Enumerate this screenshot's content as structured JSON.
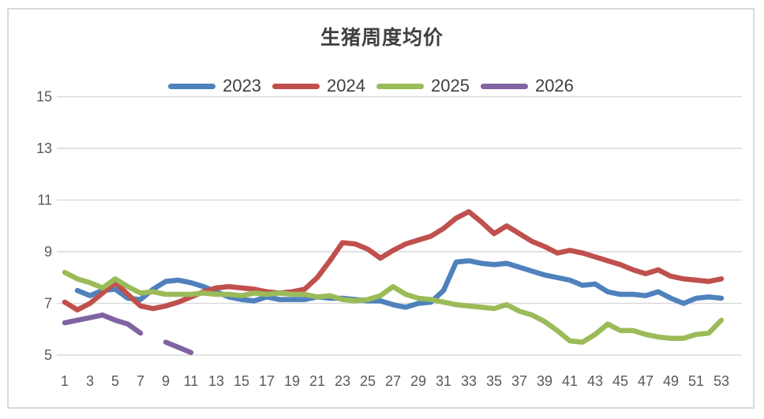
{
  "chart": {
    "title": "生猪周度均价"
  },
  "chart_data": {
    "type": "line",
    "title": "生猪周度均价",
    "xlabel": "",
    "ylabel": "",
    "x_range": [
      1,
      53
    ],
    "ylim": [
      5,
      15
    ],
    "y_ticks": [
      5,
      7,
      9,
      11,
      13,
      15
    ],
    "x_ticks": [
      1,
      3,
      5,
      7,
      9,
      11,
      13,
      15,
      17,
      19,
      21,
      23,
      25,
      27,
      29,
      31,
      33,
      35,
      37,
      39,
      41,
      43,
      45,
      47,
      49,
      51,
      53
    ],
    "grid": "horizontal",
    "legend_position": "top-center",
    "series": [
      {
        "name": "2023",
        "color": "#4F81BD",
        "values": [
          null,
          7.5,
          7.3,
          7.5,
          7.55,
          7.2,
          7.15,
          7.55,
          7.85,
          7.9,
          7.8,
          7.65,
          7.45,
          7.25,
          7.15,
          7.1,
          7.25,
          7.15,
          7.15,
          7.15,
          7.25,
          7.2,
          7.2,
          7.15,
          7.1,
          7.1,
          6.95,
          6.85,
          7.0,
          7.05,
          7.5,
          8.6,
          8.65,
          8.55,
          8.5,
          8.55,
          8.4,
          8.25,
          8.1,
          8.0,
          7.9,
          7.7,
          7.75,
          7.45,
          7.35,
          7.35,
          7.3,
          7.45,
          7.2,
          7.0,
          7.2,
          7.25,
          7.2
        ]
      },
      {
        "name": "2024",
        "color": "#C0504D",
        "values": [
          7.05,
          6.75,
          7.0,
          7.4,
          7.8,
          7.35,
          6.9,
          6.8,
          6.9,
          7.05,
          7.25,
          7.45,
          7.6,
          7.65,
          7.6,
          7.55,
          7.45,
          7.4,
          7.45,
          7.55,
          8.0,
          8.65,
          9.35,
          9.3,
          9.1,
          8.75,
          9.05,
          9.3,
          9.45,
          9.6,
          9.9,
          10.3,
          10.55,
          10.15,
          9.7,
          10.0,
          9.7,
          9.4,
          9.2,
          8.95,
          9.05,
          8.95,
          8.8,
          8.65,
          8.5,
          8.3,
          8.15,
          8.3,
          8.05,
          7.95,
          7.9,
          7.85,
          7.95
        ]
      },
      {
        "name": "2025",
        "color": "#9BBB59",
        "values": [
          8.2,
          7.95,
          7.8,
          7.6,
          7.95,
          7.65,
          7.4,
          7.45,
          7.35,
          7.35,
          7.35,
          7.4,
          7.35,
          7.35,
          7.3,
          7.4,
          7.35,
          7.4,
          7.35,
          7.35,
          7.25,
          7.3,
          7.15,
          7.1,
          7.15,
          7.3,
          7.65,
          7.35,
          7.2,
          7.15,
          7.05,
          6.95,
          6.9,
          6.85,
          6.8,
          6.95,
          6.7,
          6.55,
          6.3,
          5.95,
          5.55,
          5.5,
          5.8,
          6.2,
          5.95,
          5.95,
          5.8,
          5.7,
          5.65,
          5.65,
          5.8,
          5.85,
          6.35
        ]
      },
      {
        "name": "2026",
        "color": "#8064A2",
        "values": [
          6.25,
          6.35,
          6.45,
          6.55,
          6.35,
          6.2,
          5.85,
          null,
          5.5,
          5.3,
          5.1,
          null,
          null,
          null,
          null,
          null,
          null,
          null,
          null,
          null,
          null,
          null,
          null,
          null,
          null,
          null,
          null,
          null,
          null,
          null,
          null,
          null,
          null,
          null,
          null,
          null,
          null,
          null,
          null,
          null,
          null,
          null,
          null,
          null,
          null,
          null,
          null,
          null,
          null,
          null,
          null,
          null,
          null
        ]
      }
    ]
  },
  "style": {
    "grid_color": "#d9d9d9",
    "frame_border_color": "#d9d9d9",
    "tick_text_color": "#595959",
    "title_color": "#404040",
    "background": "#ffffff"
  }
}
